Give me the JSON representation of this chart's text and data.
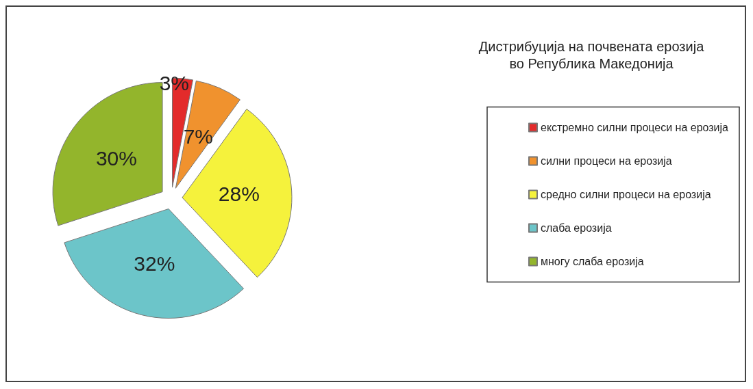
{
  "chart_data": {
    "type": "pie",
    "title": "Дистрибуција на почвената ерозија\nво Република Македонија",
    "categories": [
      "екстремно силни процеси на ерозија",
      "силни процеси на ерозија",
      "средно силни процеси на ерозија",
      "слаба ерозија",
      "многу слаба ерозија"
    ],
    "values": [
      3,
      7,
      28,
      32,
      30
    ],
    "value_labels": [
      "3%",
      "7%",
      "28%",
      "32%",
      "30%"
    ],
    "colors": [
      "#e32b2b",
      "#f0922e",
      "#f5f23c",
      "#6cc5c9",
      "#93b52c"
    ],
    "legend": "right"
  }
}
